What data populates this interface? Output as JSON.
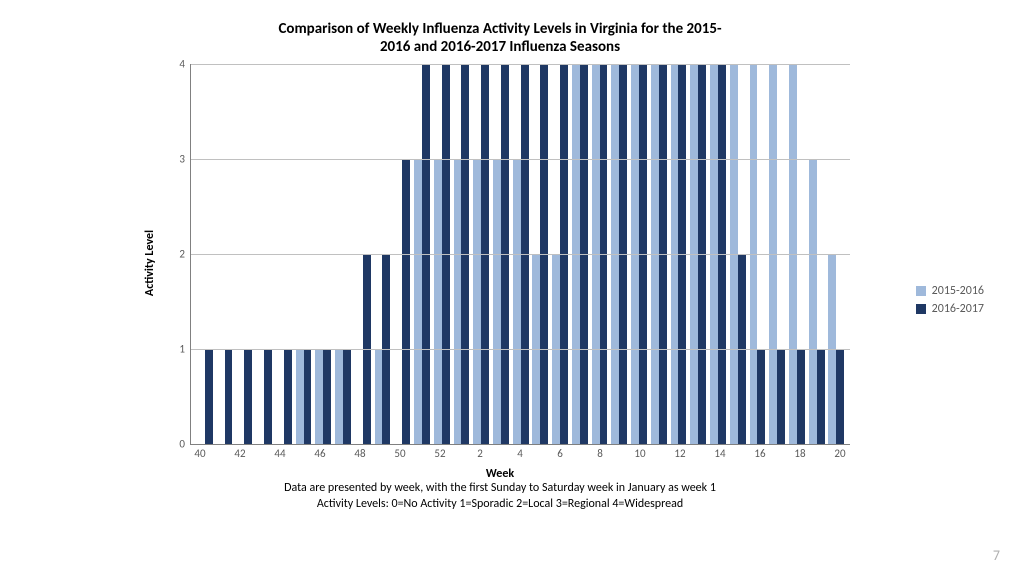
{
  "page_number": "7",
  "chart": {
    "type": "bar",
    "title_line1": "Comparison of Weekly Influenza Activity Levels in Virginia for the 2015-",
    "title_line2": "2016 and 2016-2017 Influenza Seasons",
    "title_fontsize": 15,
    "ylabel": "Activity Level",
    "xlabel": "Week",
    "caption_line1": "Data are presented by week, with the first Sunday to Saturday week in January as week 1",
    "caption_line2": "Activity Levels: 0=No Activity  1=Sporadic  2=Local  3=Regional  4=Widespread",
    "ylim": [
      0,
      4
    ],
    "ytick_step": 1,
    "grid_color": "#c0c0c0",
    "axis_color": "#808080",
    "background_color": "#ffffff",
    "series": [
      {
        "name": "2015-2016",
        "color": "#9fb9db"
      },
      {
        "name": "2016-2017",
        "color": "#1f3864"
      }
    ],
    "weeks": [
      40,
      41,
      42,
      43,
      44,
      45,
      46,
      47,
      48,
      49,
      50,
      51,
      52,
      1,
      2,
      3,
      4,
      5,
      6,
      7,
      8,
      9,
      10,
      11,
      12,
      13,
      14,
      15,
      16,
      17,
      18,
      19,
      20
    ],
    "xtick_labels": [
      40,
      42,
      44,
      46,
      48,
      50,
      52,
      2,
      4,
      6,
      8,
      10,
      12,
      14,
      16,
      18,
      20
    ],
    "values_2015_2016": [
      0,
      0,
      0,
      0,
      0,
      1,
      1,
      1,
      0,
      1,
      0,
      3,
      3,
      3,
      3,
      3,
      3,
      2,
      2,
      4,
      4,
      4,
      4,
      4,
      4,
      4,
      4,
      4,
      4,
      4,
      4,
      3,
      2
    ],
    "values_2016_2017": [
      1,
      1,
      1,
      1,
      1,
      1,
      1,
      1,
      2,
      2,
      3,
      4,
      4,
      4,
      4,
      4,
      4,
      4,
      4,
      4,
      4,
      4,
      4,
      4,
      4,
      4,
      4,
      2,
      1,
      1,
      1,
      1,
      1
    ]
  }
}
